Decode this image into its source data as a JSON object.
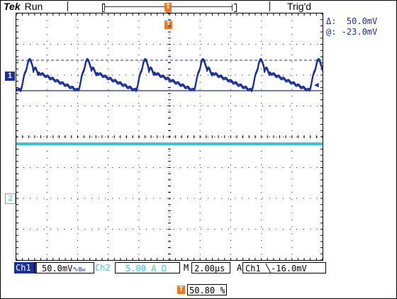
{
  "header": {
    "brand": "Tek",
    "run_state": "Run",
    "trigger_state": "Trig'd"
  },
  "cursor_readout": {
    "delta_label": "Δ:",
    "delta_value": "50.0mV",
    "at_label": "@:",
    "at_value": "-23.0mV"
  },
  "markers": {
    "trigger_marker": "T",
    "ch1": "1",
    "ch2": "2"
  },
  "status_bar": {
    "ch1_label": "Ch1",
    "ch1_scale": "50.0mV",
    "ch1_coupling": "∿",
    "ch1_bw": "Bw",
    "ch2_label": "Ch2",
    "ch2_scale": "5.00 A Ω",
    "timebase_label": "M",
    "timebase_value": "2.00µs",
    "trigger_mode": "A",
    "trigger_source": "Ch1",
    "trigger_slope": "╲",
    "trigger_level": "-16.0mV"
  },
  "trigger_position": {
    "icon": "T",
    "value": "50.80 %"
  },
  "colors": {
    "ch1": "#1a2f9f",
    "ch2": "#30c8d8",
    "trigger": "#ee7722",
    "grid": "#000000"
  },
  "waveforms": {
    "ch1": "sawtooth ripple with ringing spikes, ~5 periods across 10 divisions",
    "ch2": "flat trace"
  }
}
